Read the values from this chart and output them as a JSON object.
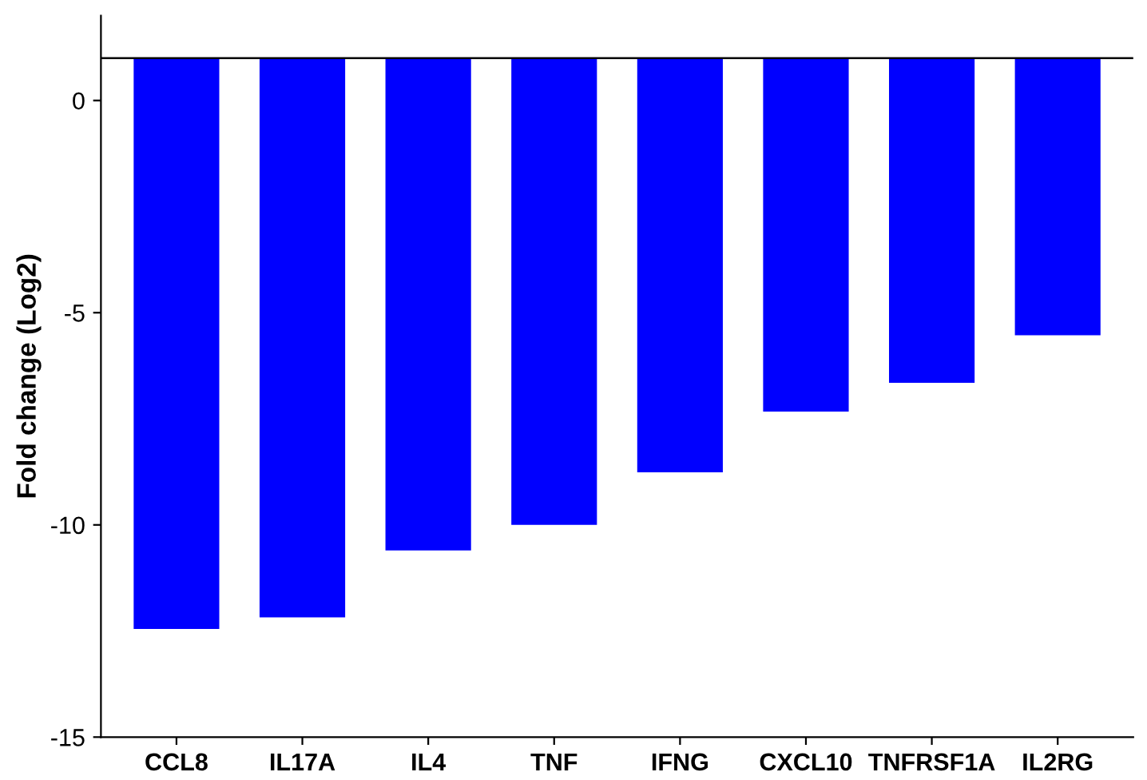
{
  "chart_data": {
    "type": "bar",
    "ylabel": "Fold change (Log2)",
    "categories": [
      "CCL8",
      "IL17A",
      "IL4",
      "TNF",
      "IFNG",
      "CXCL10",
      "TNFRSF1A",
      "IL2RG"
    ],
    "base": [
      1,
      1,
      1,
      1,
      1,
      1,
      1,
      1
    ],
    "values": [
      -13.45,
      -13.18,
      -11.6,
      -11.0,
      -9.76,
      -8.33,
      -7.65,
      -6.53
    ],
    "color": "#0000ff",
    "ylim": [
      -15,
      2
    ],
    "yticks": [
      0,
      -5,
      -10,
      -15
    ],
    "ref_lines": [
      {
        "axis": "y",
        "value": 1,
        "color": "#000000"
      }
    ],
    "grid": false
  }
}
